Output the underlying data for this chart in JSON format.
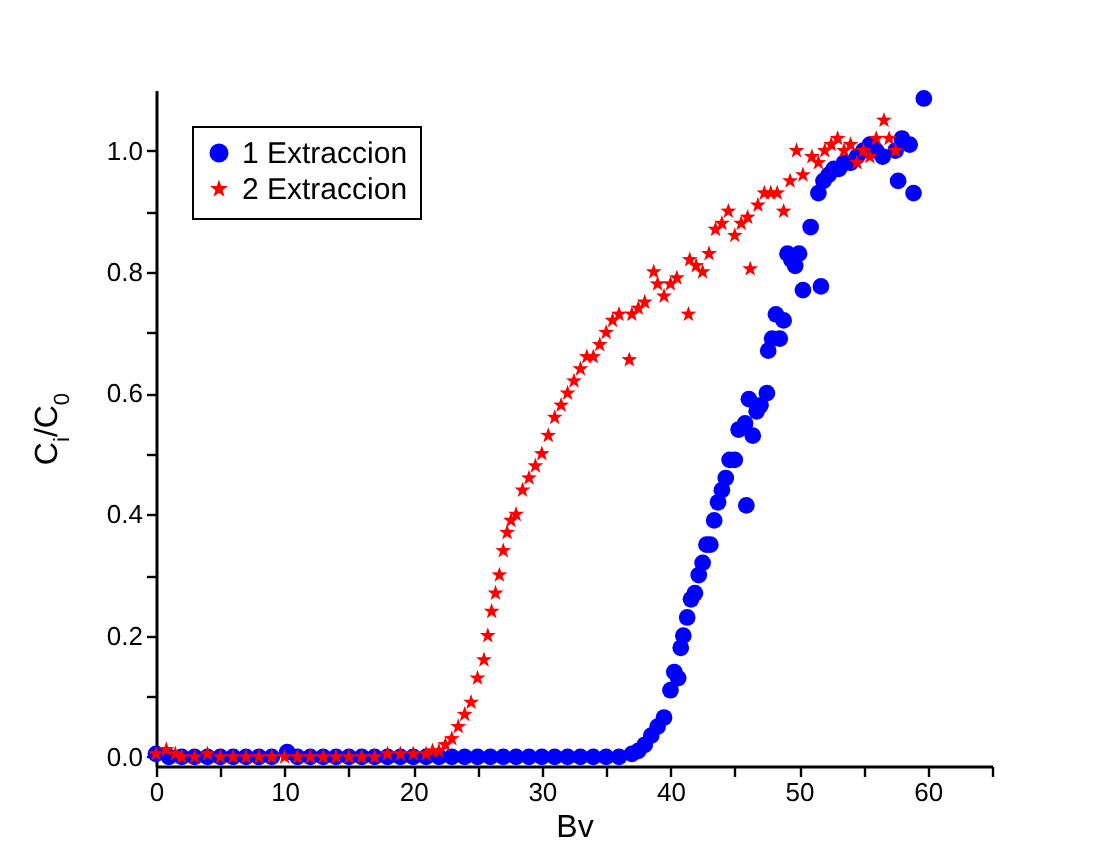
{
  "chart_data": {
    "type": "scatter",
    "xlabel": "Bv",
    "ylabel": "C$_{i}$/C$_{0}$",
    "xlim": [
      0,
      65
    ],
    "ylim": [
      -0.015,
      1.1
    ],
    "xticks": [
      0,
      {
        "value": 5,
        "label": null
      },
      10,
      {
        "value": 15,
        "label": null
      },
      20,
      {
        "value": 25,
        "label": null
      },
      30,
      {
        "value": 35,
        "label": null
      },
      40,
      {
        "value": 45,
        "label": null
      },
      50,
      {
        "value": 55,
        "label": null
      },
      60,
      {
        "value": 65,
        "label": null
      }
    ],
    "yticks": [
      {
        "value": 0,
        "label": "0.0"
      },
      {
        "value": 0.1,
        "label": null
      },
      {
        "value": 0.2,
        "label": "0.2"
      },
      {
        "value": 0.3,
        "label": null
      },
      {
        "value": 0.4,
        "label": "0.4"
      },
      {
        "value": 0.5,
        "label": null
      },
      {
        "value": 0.6,
        "label": "0.6"
      },
      {
        "value": 0.7,
        "label": null
      },
      {
        "value": 0.8,
        "label": "0.8"
      },
      {
        "value": 0.9,
        "label": null
      },
      {
        "value": 1.0,
        "label": "1.0"
      }
    ],
    "legend": "top left",
    "grid": false,
    "series": [
      {
        "name": "1 Extraccion",
        "color": "#0000ff",
        "marker": "circle",
        "x": [
          0,
          1,
          2,
          3,
          4,
          5,
          6,
          7,
          8,
          9,
          10.2,
          11,
          12,
          13,
          14,
          15,
          16,
          17,
          18,
          19,
          20,
          21,
          22,
          23,
          24,
          25,
          26,
          27,
          28,
          29,
          30,
          31,
          32,
          33,
          34,
          35,
          36,
          37,
          37.5,
          38,
          38.5,
          39,
          39.5,
          40,
          40.3,
          40.6,
          40.8,
          41,
          41.3,
          41.6,
          41.9,
          42.2,
          42.5,
          42.8,
          43.1,
          43.4,
          43.7,
          44,
          44.3,
          44.6,
          45,
          45.3,
          45.9,
          45.8,
          46.1,
          46.4,
          46.7,
          47,
          47.5,
          47.6,
          47.9,
          48.2,
          48.5,
          48.8,
          49.1,
          49.4,
          49.7,
          50,
          50.3,
          50.9,
          51.7,
          51.5,
          51.9,
          52.3,
          52.7,
          53.1,
          53.5,
          54,
          54.5,
          55,
          55.5,
          56,
          56.5,
          57.7,
          57.5,
          58,
          58.9,
          58.6,
          59.7
        ],
        "values": [
          0.005,
          0,
          0,
          0,
          0,
          0,
          0,
          0,
          0,
          0,
          0.008,
          0,
          0,
          0,
          0,
          0,
          0,
          0,
          0,
          0,
          0,
          0,
          0,
          0,
          0,
          0,
          0,
          0,
          0,
          0,
          0,
          0,
          0,
          0,
          0,
          0,
          0,
          0.005,
          0.01,
          0.02,
          0.035,
          0.05,
          0.065,
          0.11,
          0.14,
          0.13,
          0.18,
          0.2,
          0.23,
          0.26,
          0.27,
          0.3,
          0.32,
          0.35,
          0.35,
          0.39,
          0.42,
          0.44,
          0.46,
          0.49,
          0.49,
          0.54,
          0.415,
          0.55,
          0.59,
          0.53,
          0.57,
          0.58,
          0.6,
          0.67,
          0.69,
          0.73,
          0.69,
          0.72,
          0.83,
          0.82,
          0.81,
          0.83,
          0.77,
          0.874,
          0.776,
          0.93,
          0.95,
          0.96,
          0.97,
          0.97,
          0.98,
          0.98,
          0.99,
          1.0,
          1.01,
          1.0,
          0.99,
          0.95,
          1.0,
          1.02,
          0.93,
          1.01,
          1.086
        ]
      },
      {
        "name": "2 Extraccion",
        "color": "#ff0000",
        "marker": "star",
        "x": [
          0,
          0.8,
          1.5,
          2,
          3,
          4,
          5,
          6,
          7,
          8,
          9,
          10,
          11,
          12,
          13,
          14,
          15,
          16,
          17,
          18,
          19,
          20,
          21,
          21.5,
          22,
          22.5,
          23,
          23.5,
          24,
          24.5,
          25,
          25.5,
          25.8,
          26.1,
          26.4,
          26.7,
          27,
          27.3,
          27.6,
          28,
          28.5,
          29,
          29.5,
          30,
          30.5,
          31,
          31.5,
          32,
          32.5,
          33,
          33.5,
          34,
          34.5,
          35,
          35.5,
          36,
          36.8,
          37,
          37.5,
          38,
          38.7,
          39,
          39.5,
          40,
          40.5,
          41.4,
          41.5,
          42,
          42.5,
          43,
          43.5,
          44,
          44.5,
          45,
          45.5,
          46,
          46.2,
          46.8,
          47.3,
          47.8,
          48.3,
          48.8,
          49.3,
          49.8,
          50.3,
          51,
          51.5,
          52,
          52.5,
          53,
          53.5,
          54,
          54.5,
          55,
          55.5,
          56,
          56.6,
          57,
          57.5
        ],
        "values": [
          0.005,
          0.012,
          0.005,
          0,
          0,
          0.005,
          0,
          0,
          0,
          0,
          0,
          0,
          0,
          0,
          0,
          0,
          0,
          0,
          0,
          0.005,
          0.005,
          0.005,
          0.005,
          0.01,
          0.01,
          0.02,
          0.03,
          0.05,
          0.07,
          0.09,
          0.13,
          0.16,
          0.2,
          0.24,
          0.27,
          0.3,
          0.34,
          0.37,
          0.39,
          0.4,
          0.44,
          0.46,
          0.48,
          0.5,
          0.53,
          0.56,
          0.58,
          0.6,
          0.62,
          0.64,
          0.66,
          0.66,
          0.68,
          0.7,
          0.72,
          0.73,
          0.655,
          0.73,
          0.74,
          0.75,
          0.8,
          0.78,
          0.76,
          0.78,
          0.79,
          0.73,
          0.82,
          0.81,
          0.8,
          0.83,
          0.87,
          0.88,
          0.9,
          0.86,
          0.88,
          0.89,
          0.805,
          0.91,
          0.93,
          0.93,
          0.93,
          0.9,
          0.95,
          1.0,
          0.96,
          0.99,
          0.98,
          1.0,
          1.01,
          1.02,
          1.0,
          1.01,
          0.98,
          1.0,
          0.99,
          1.02,
          1.05,
          1.02,
          1.0
        ]
      }
    ]
  }
}
